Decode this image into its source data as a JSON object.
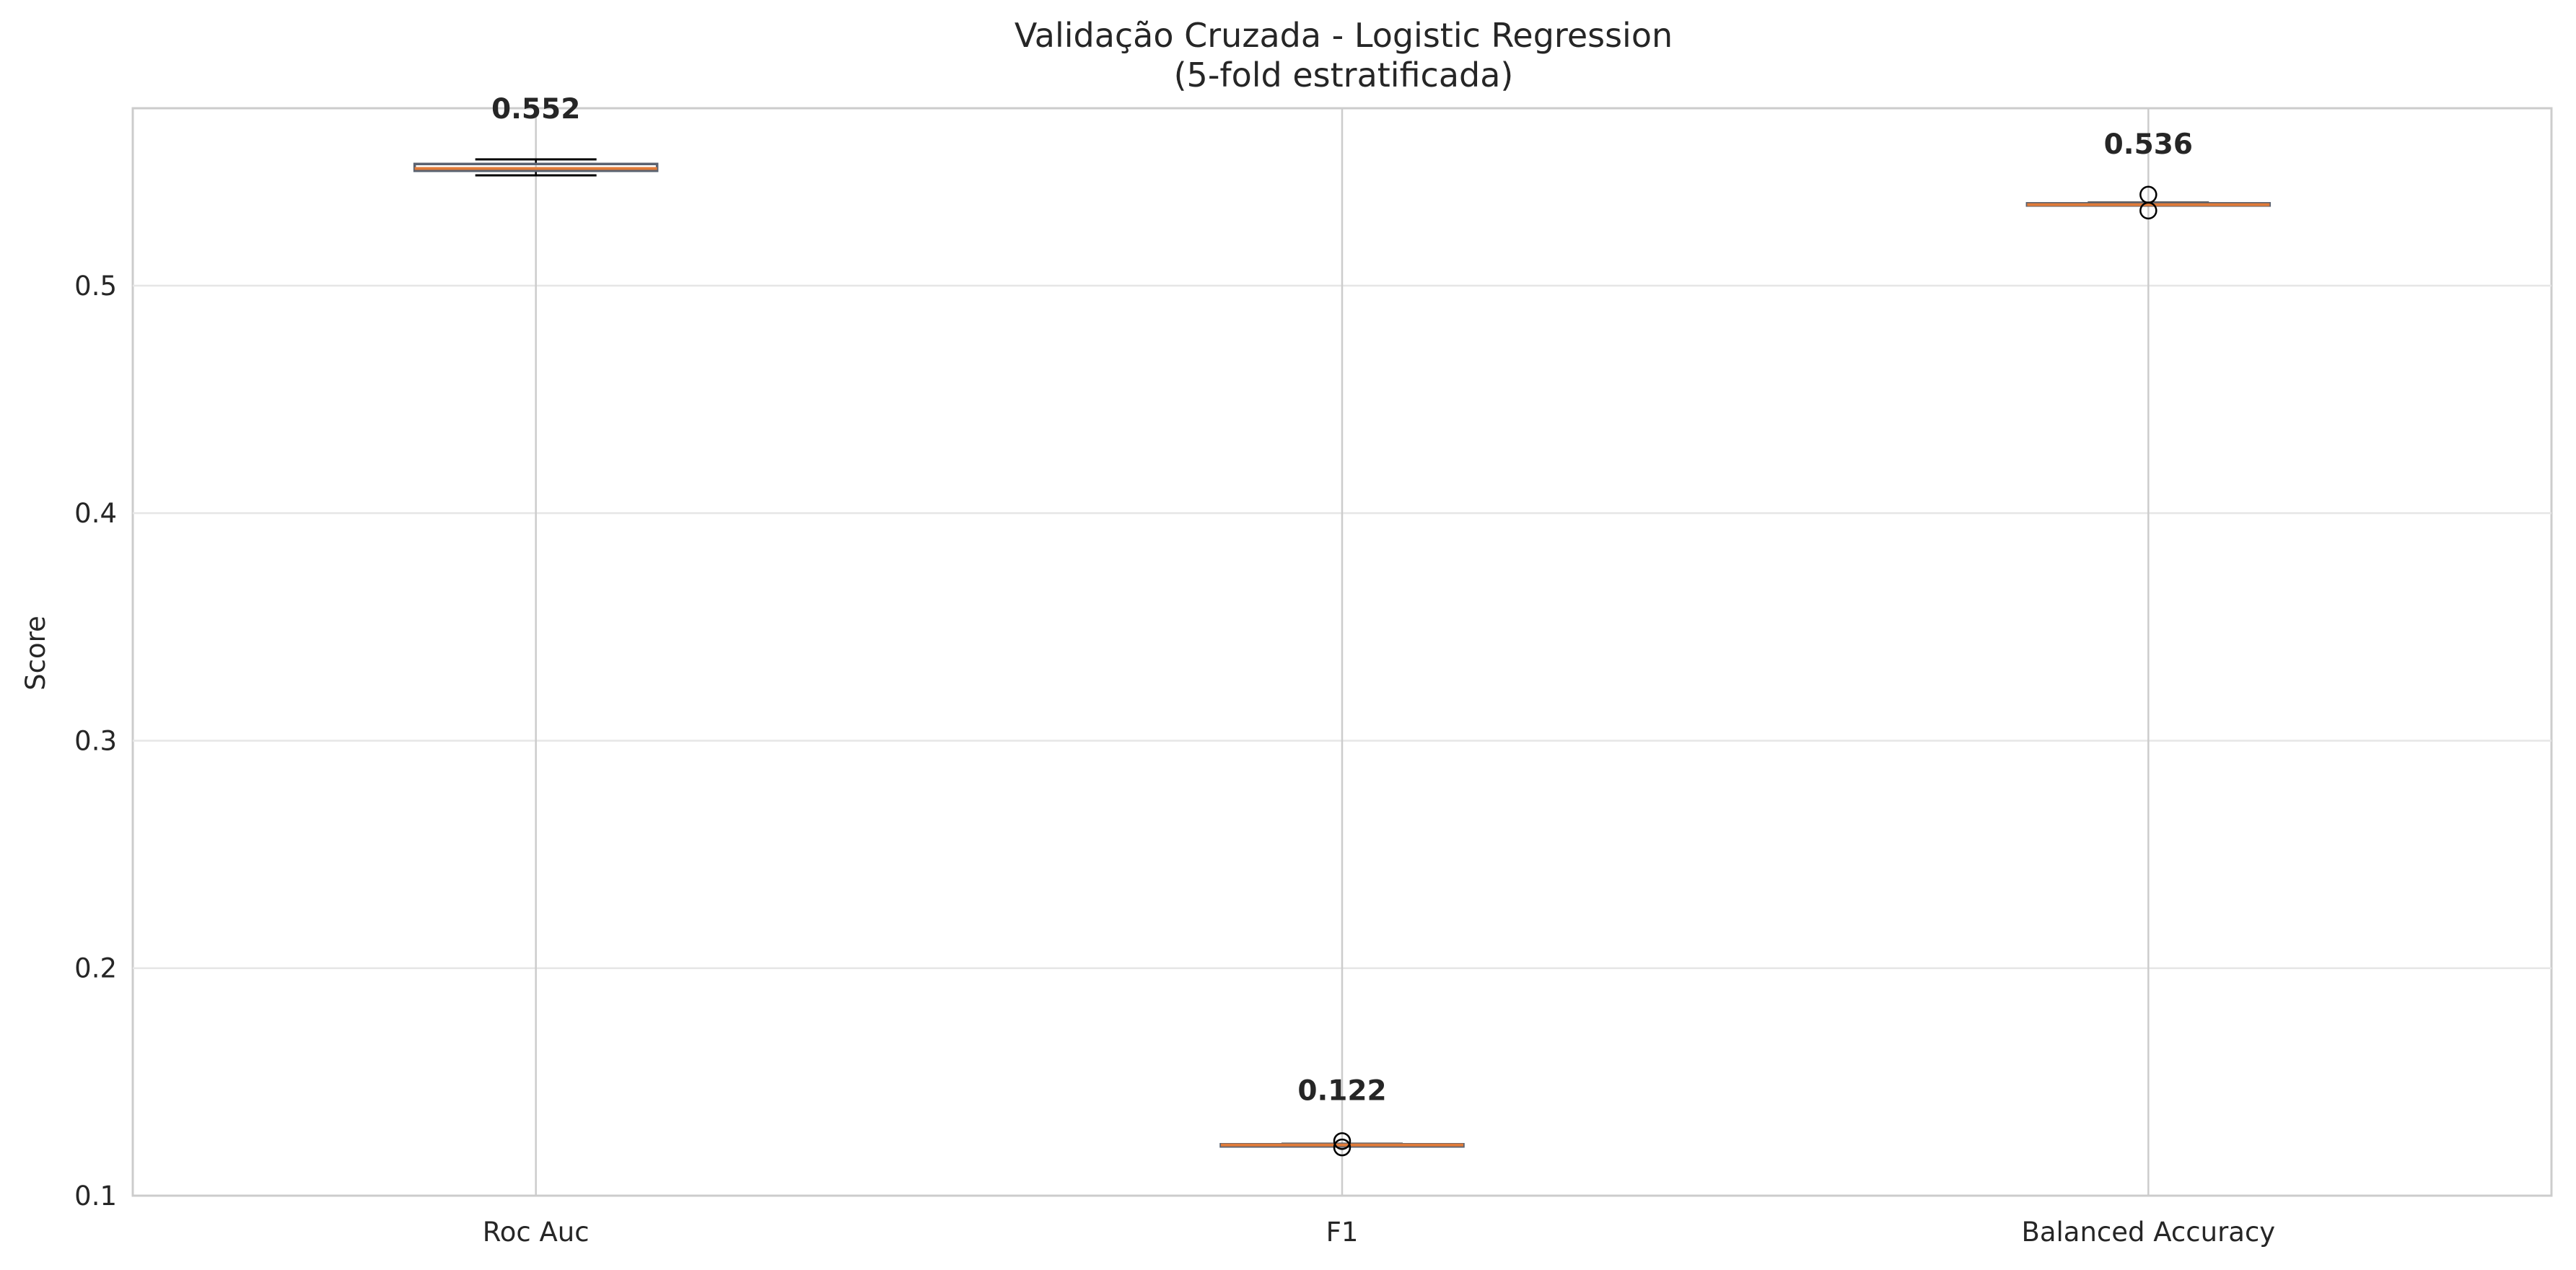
{
  "chart_data": {
    "type": "box",
    "title_line1": "Validação Cruzada - Logistic Regression",
    "title_line2": "(5-fold estratificada)",
    "xlabel": "",
    "ylabel": "Score",
    "ylim": [
      0.1,
      0.578
    ],
    "yticks": [
      "0.1",
      "0.2",
      "0.3",
      "0.4",
      "0.5"
    ],
    "grid": true,
    "categories": [
      "Roc Auc",
      "F1",
      "Balanced Accuracy"
    ],
    "boxes": [
      {
        "category": "Roc Auc",
        "whislo": 0.5485,
        "q1": 0.5505,
        "median": 0.5515,
        "q3": 0.5535,
        "whishi": 0.5555,
        "fliers": [],
        "mean_label": "0.552"
      },
      {
        "category": "F1",
        "whislo": 0.122,
        "q1": 0.1222,
        "median": 0.1223,
        "q3": 0.1226,
        "whishi": 0.1228,
        "fliers": [
          0.1212,
          0.124
        ],
        "mean_label": "0.122"
      },
      {
        "category": "Balanced Accuracy",
        "whislo": 0.5353,
        "q1": 0.5355,
        "median": 0.5356,
        "q3": 0.5362,
        "whishi": 0.5365,
        "fliers": [
          0.533,
          0.54
        ],
        "mean_label": "0.536"
      }
    ],
    "colors": {
      "box": "#5a6270",
      "median": "#e07b39",
      "grid": "#e6e6e6",
      "axis": "#cccccc"
    }
  }
}
